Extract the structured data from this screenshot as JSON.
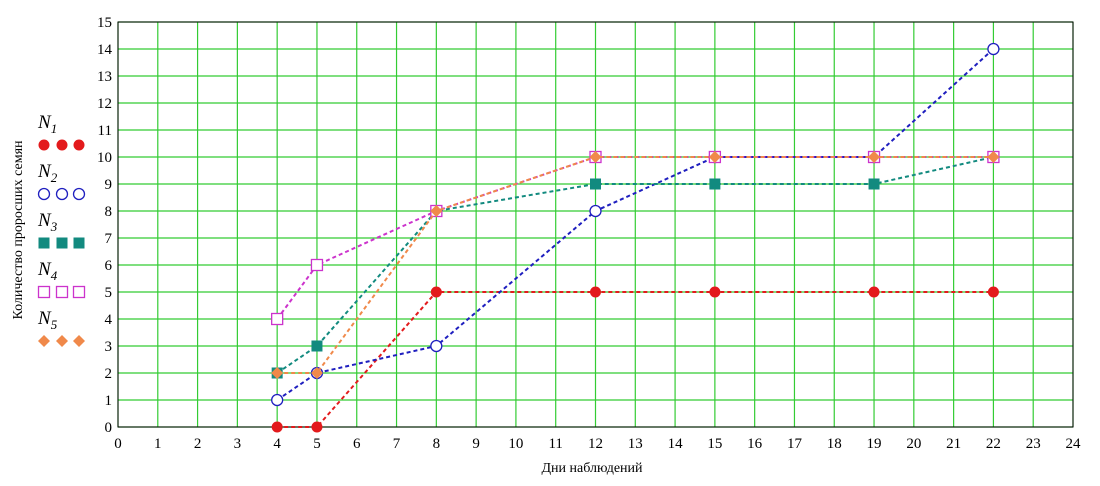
{
  "chart_data": {
    "type": "line",
    "title": "",
    "xlabel": "Дни наблюдений",
    "ylabel": "Количество проросших семян",
    "xlim": [
      0,
      24
    ],
    "ylim": [
      0,
      15
    ],
    "x_ticks": [
      "0",
      "1",
      "2",
      "3",
      "4",
      "5",
      "6",
      "7",
      "8",
      "9",
      "10",
      "11",
      "12",
      "13",
      "14",
      "15",
      "16",
      "17",
      "18",
      "19",
      "20",
      "21",
      "22",
      "23",
      "24"
    ],
    "y_ticks": [
      "0",
      "1",
      "2",
      "3",
      "4",
      "5",
      "6",
      "7",
      "8",
      "9",
      "10",
      "11",
      "12",
      "13",
      "14",
      "15"
    ],
    "grid": true,
    "grid_color": "#33cc33",
    "legend_position": "left",
    "x": [
      4,
      5,
      8,
      12,
      15,
      19,
      22
    ],
    "series": [
      {
        "name_main": "N",
        "name_sub": "1",
        "color": "#e31a1c",
        "marker": "filled-circle",
        "values": [
          0,
          0,
          5,
          5,
          5,
          5,
          5
        ]
      },
      {
        "name_main": "N",
        "name_sub": "2",
        "color": "#1f1fbf",
        "marker": "open-circle",
        "values": [
          1,
          2,
          3,
          8,
          10,
          10,
          14
        ]
      },
      {
        "name_main": "N",
        "name_sub": "3",
        "color": "#128a7f",
        "marker": "filled-square",
        "values": [
          2,
          3,
          8,
          9,
          9,
          9,
          10
        ]
      },
      {
        "name_main": "N",
        "name_sub": "4",
        "color": "#cc33cc",
        "marker": "open-square",
        "values": [
          4,
          6,
          8,
          10,
          10,
          10,
          10
        ]
      },
      {
        "name_main": "N",
        "name_sub": "5",
        "color": "#f0894a",
        "marker": "filled-diamond",
        "values": [
          2,
          2,
          8,
          10,
          10,
          10,
          10
        ]
      }
    ]
  }
}
